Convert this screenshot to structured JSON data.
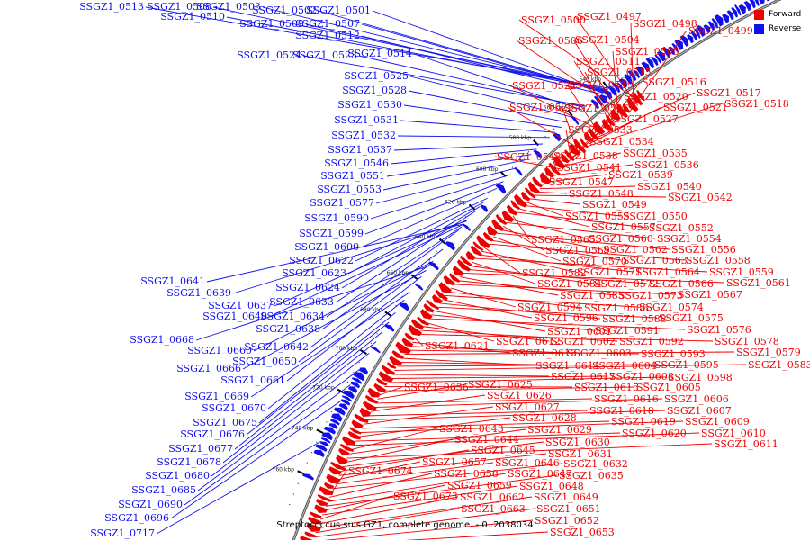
{
  "caption": "Streptococcus suis GZ1, complete genome. - 0..2038034",
  "legend": [
    {
      "label": "Forward",
      "color": "#ee0000"
    },
    {
      "label": "Reverse",
      "color": "#1010ee"
    }
  ],
  "colors": {
    "forward": "#ee0000",
    "reverse": "#1010ee",
    "backbone": "#888888"
  },
  "ticks": [
    "540 kbp",
    "560 kbp",
    "580 kbp",
    "600 kbp",
    "620 kbp",
    "640 kbp",
    "660 kbp",
    "680 kbp",
    "700 kbp",
    "720 kbp",
    "740 kbp",
    "760 kbp"
  ],
  "reverse_genes": [
    "SSGZ1_0513",
    "SSGZ1_0508",
    "SSGZ1_0503",
    "SSGZ1_0502",
    "SSGZ1_0501",
    "SSGZ1_0510",
    "SSGZ1_0509",
    "SSGZ1_0507",
    "SSGZ1_0512",
    "SSGZ1_0524",
    "SSGZ1_0523",
    "SSGZ1_0514",
    "SSGZ1_0525",
    "SSGZ1_0528",
    "SSGZ1_0530",
    "SSGZ1_0531",
    "SSGZ1_0532",
    "SSGZ1_0537",
    "SSGZ1_0546",
    "SSGZ1_0551",
    "SSGZ1_0553",
    "SSGZ1_0577",
    "SSGZ1_0590",
    "SSGZ1_0599",
    "SSGZ1_0600",
    "SSGZ1_0622",
    "SSGZ1_0623",
    "SSGZ1_0641",
    "SSGZ1_0624",
    "SSGZ1_0639",
    "SSGZ1_0633",
    "SSGZ1_0637",
    "SSGZ1_0640",
    "SSGZ1_0634",
    "SSGZ1_0638",
    "SSGZ1_0668",
    "SSGZ1_0660",
    "SSGZ1_0642",
    "SSGZ1_0666",
    "SSGZ1_0650",
    "SSGZ1_0661",
    "SSGZ1_0669",
    "SSGZ1_0670",
    "SSGZ1_0675",
    "SSGZ1_0676",
    "SSGZ1_0677",
    "SSGZ1_0678",
    "SSGZ1_0680",
    "SSGZ1_0685",
    "SSGZ1_0690",
    "SSGZ1_0696",
    "SSGZ1_0717"
  ],
  "forward_genes": [
    "SSGZ1_0500",
    "SSGZ1_0497",
    "SSGZ1_0498",
    "SSGZ1_0499",
    "SSGZ1_0506",
    "SSGZ1_0504",
    "SSGZ1_0505",
    "SSGZ1_0511",
    "SSGZ1_0515",
    "SSGZ1_0516",
    "SSGZ1_0522",
    "SSGZ1_0519",
    "SSGZ1_0517",
    "SSGZ1_0520",
    "SSGZ1_0521",
    "SSGZ1_0518",
    "SSGZ1_0529",
    "SSGZ1_0526",
    "SSGZ1_0527",
    "SSGZ1_0533",
    "SSGZ1_0534",
    "SSGZ1_0535",
    "SSGZ1_0543",
    "SSGZ1_0538",
    "SSGZ1_0536",
    "SSGZ1_0541",
    "SSGZ1_0539",
    "SSGZ1_0547",
    "SSGZ1_0540",
    "SSGZ1_0548",
    "SSGZ1_0542",
    "SSGZ1_0549",
    "SSGZ1_0555",
    "SSGZ1_0550",
    "SSGZ1_0557",
    "SSGZ1_0552",
    "SSGZ1_0565",
    "SSGZ1_0560",
    "SSGZ1_0554",
    "SSGZ1_0569",
    "SSGZ1_0562",
    "SSGZ1_0556",
    "SSGZ1_0570",
    "SSGZ1_0563",
    "SSGZ1_0558",
    "SSGZ1_0582",
    "SSGZ1_0571",
    "SSGZ1_0564",
    "SSGZ1_0559",
    "SSGZ1_0584",
    "SSGZ1_0572",
    "SSGZ1_0566",
    "SSGZ1_0561",
    "SSGZ1_0585",
    "SSGZ1_0573",
    "SSGZ1_0567",
    "SSGZ1_0594",
    "SSGZ1_0586",
    "SSGZ1_0574",
    "SSGZ1_0596",
    "SSGZ1_0588",
    "SSGZ1_0575",
    "SSGZ1_0601",
    "SSGZ1_0591",
    "SSGZ1_0576",
    "SSGZ1_0612",
    "SSGZ1_0602",
    "SSGZ1_0592",
    "SSGZ1_0578",
    "SSGZ1_0621",
    "SSGZ1_0613",
    "SSGZ1_0603",
    "SSGZ1_0593",
    "SSGZ1_0579",
    "SSGZ1_0614",
    "SSGZ1_0604",
    "SSGZ1_0595",
    "SSGZ1_0583",
    "SSGZ1_0617",
    "SSGZ1_0608",
    "SSGZ1_0598",
    "SSGZ1_0615",
    "SSGZ1_0605",
    "SSGZ1_0636",
    "SSGZ1_0625",
    "SSGZ1_0616",
    "SSGZ1_0606",
    "SSGZ1_0626",
    "SSGZ1_0618",
    "SSGZ1_0607",
    "SSGZ1_0627",
    "SSGZ1_0619",
    "SSGZ1_0609",
    "SSGZ1_0628",
    "SSGZ1_0620",
    "SSGZ1_0610",
    "SSGZ1_0643",
    "SSGZ1_0629",
    "SSGZ1_0611",
    "SSGZ1_0644",
    "SSGZ1_0630",
    "SSGZ1_0645",
    "SSGZ1_0631",
    "SSGZ1_0657",
    "SSGZ1_0646",
    "SSGZ1_0632",
    "SSGZ1_0674",
    "SSGZ1_0658",
    "SSGZ1_0647",
    "SSGZ1_0635",
    "SSGZ1_0659",
    "SSGZ1_0648",
    "SSGZ1_0673",
    "SSGZ1_0662",
    "SSGZ1_0649",
    "SSGZ1_0663",
    "SSGZ1_0651",
    "SSGZ1_0652",
    "SSGZ1_0653"
  ]
}
